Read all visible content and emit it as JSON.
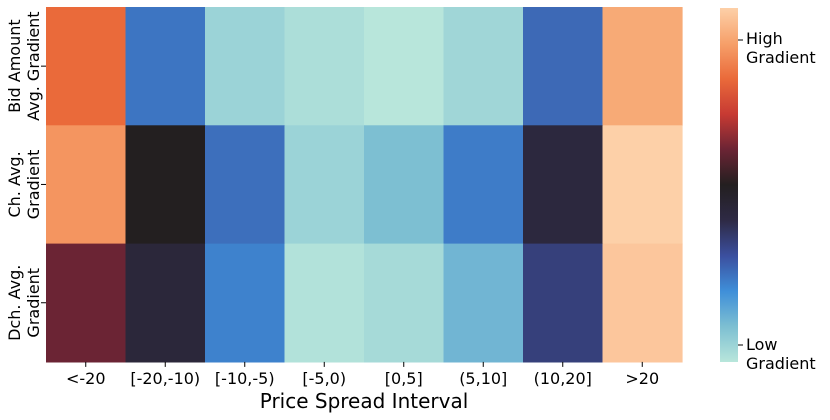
{
  "chart_data": {
    "type": "heatmap",
    "xlabel": "Price Spread Interval",
    "ylabel": "",
    "x_categories": [
      "<-20",
      "[-20,-10)",
      "[-10,-5)",
      "[-5,0)",
      "[0,5]",
      "(5,10]",
      "(10,20]",
      ">20"
    ],
    "y_categories": [
      [
        "Bid Amount",
        "Avg. Gradient"
      ],
      [
        "Ch. Avg.",
        "Gradient"
      ],
      [
        "Dch. Avg.",
        "Gradient"
      ]
    ],
    "values": [
      [
        0.8,
        0.24,
        0.05,
        0.02,
        0.0,
        0.04,
        0.26,
        0.92
      ],
      [
        0.88,
        0.5,
        0.25,
        0.05,
        0.1,
        0.23,
        0.42,
        1.0
      ],
      [
        0.6,
        0.43,
        0.22,
        0.01,
        0.03,
        0.12,
        0.34,
        0.98
      ]
    ],
    "colorbar": {
      "high_label": [
        "High",
        "Gradient"
      ],
      "low_label": [
        "Low",
        "Gradient"
      ],
      "stops": [
        "#b8e6db",
        "#7dbfd2",
        "#3f8fd9",
        "#3b4f9f",
        "#2e2a45",
        "#231f20",
        "#6b2434",
        "#c73a33",
        "#ea6a3a",
        "#f6a06a",
        "#fdd0a8"
      ]
    }
  }
}
